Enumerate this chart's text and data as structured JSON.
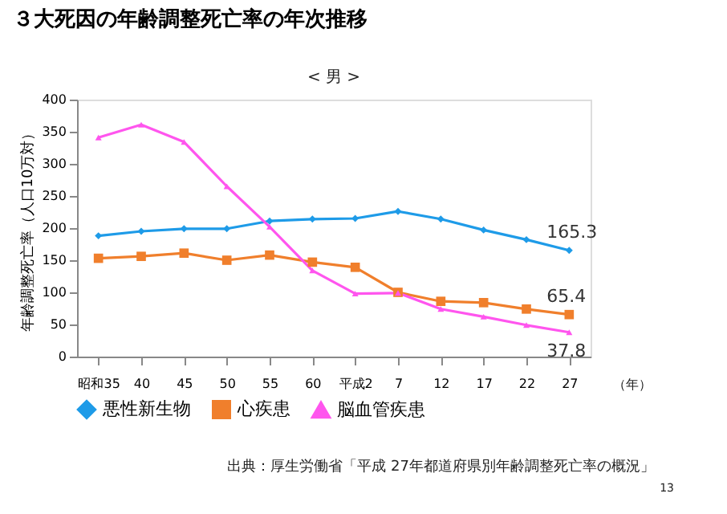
{
  "chart_data": {
    "type": "line",
    "title": "３大死因の年齢調整死亡率の年次推移",
    "subtitle": "< 男 >",
    "ylabel": "年齢調整死亡率（人口10万対）",
    "categories": [
      "昭和35",
      "40",
      "45",
      "50",
      "55",
      "60",
      "平成2",
      "7",
      "12",
      "17",
      "22",
      "27"
    ],
    "series": [
      {
        "name": "悪性新生物",
        "color": "#1e9be8",
        "marker": "diamond",
        "values": [
          188,
          195,
          199,
          199,
          211,
          214,
          215,
          226,
          214,
          197,
          182,
          165.3
        ],
        "value_labels": [
          null,
          null,
          null,
          null,
          null,
          null,
          null,
          null,
          null,
          null,
          null,
          "165.3"
        ]
      },
      {
        "name": "心疾患",
        "color": "#f07f2c",
        "marker": "square",
        "values": [
          153,
          156,
          161,
          150,
          158,
          147,
          139,
          100,
          86,
          84,
          74,
          65.4
        ],
        "value_labels": [
          null,
          null,
          null,
          null,
          null,
          null,
          null,
          null,
          null,
          null,
          null,
          "65.4"
        ]
      },
      {
        "name": "脳血管疾患",
        "color": "#ff55ee",
        "marker": "triangle",
        "values": [
          341,
          361,
          334,
          265,
          202,
          134,
          98,
          99,
          74,
          62,
          49,
          37.8
        ],
        "value_labels": [
          null,
          null,
          null,
          null,
          null,
          null,
          null,
          null,
          null,
          null,
          null,
          "37.8"
        ]
      }
    ],
    "ylim": [
      0,
      400
    ],
    "yticks": [
      0,
      50,
      100,
      150,
      200,
      250,
      300,
      350,
      400
    ],
    "grid": false,
    "legend": "bottom",
    "line_style": "solid",
    "annotations": [
      "（年）",
      "出典：厚生労働省「平成 27年都道府県別年齢調整死亡率の概況」",
      "13"
    ]
  }
}
